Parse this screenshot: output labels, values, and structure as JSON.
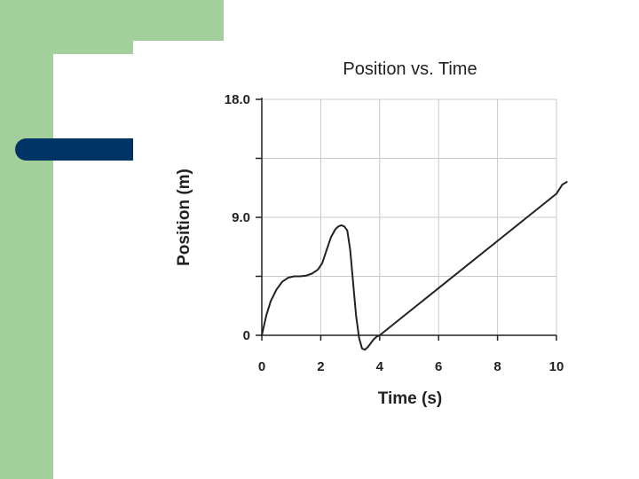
{
  "theme": {
    "green": "#a3cf9c",
    "blue": "#003464",
    "grid": "#c8c8c8",
    "ink": "#222222"
  },
  "chart_data": {
    "type": "line",
    "title": "Position vs. Time",
    "xlabel": "Time (s)",
    "ylabel": "Position (m)",
    "xlim": [
      0,
      10
    ],
    "ylim": [
      0,
      18
    ],
    "x_ticks": [
      0,
      2,
      4,
      6,
      8,
      10
    ],
    "x_tick_labels": [
      "0",
      "2",
      "4",
      "6",
      "8",
      "10"
    ],
    "y_ticks": [
      0,
      9,
      18
    ],
    "y_tick_labels": [
      "0",
      "9.0",
      "18.0"
    ],
    "y_minor_ticks": [
      4.5,
      13.5
    ],
    "grid": true,
    "series": [
      {
        "x": [
          0,
          0.15,
          0.3,
          0.5,
          0.7,
          0.9,
          1.1,
          1.3,
          1.5,
          1.7,
          1.9,
          2.05,
          2.2,
          2.35,
          2.5,
          2.6,
          2.7,
          2.8,
          2.9,
          3.0,
          3.1,
          3.2,
          3.3,
          3.4,
          3.5,
          3.6,
          3.7,
          3.8,
          3.9,
          4.0,
          5,
          6,
          7,
          8,
          9,
          10,
          10.2,
          10.35
        ],
        "y": [
          0,
          1.5,
          2.6,
          3.5,
          4.1,
          4.4,
          4.5,
          4.5,
          4.55,
          4.7,
          5.0,
          5.5,
          6.5,
          7.5,
          8.1,
          8.3,
          8.4,
          8.3,
          8.0,
          6.5,
          4.0,
          1.5,
          -0.2,
          -1.0,
          -1.1,
          -0.9,
          -0.6,
          -0.3,
          -0.1,
          0,
          1.8,
          3.6,
          5.4,
          7.2,
          9.0,
          10.8,
          11.5,
          11.7
        ]
      }
    ]
  }
}
